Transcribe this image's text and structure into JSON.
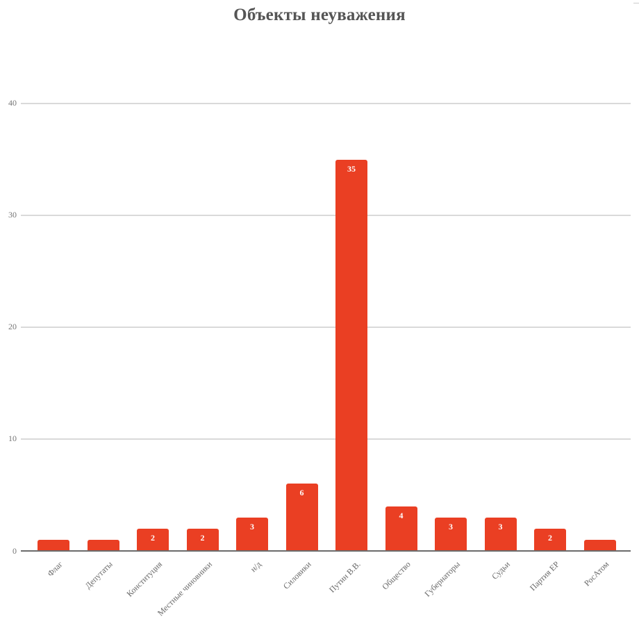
{
  "chart_data": {
    "type": "bar",
    "title": "Объекты неуважения",
    "xlabel": "",
    "ylabel": "",
    "ylim": [
      0,
      40
    ],
    "yticks": [
      0,
      10,
      20,
      30,
      40
    ],
    "grid": true,
    "legend": null,
    "bar_color": "#ea3f23",
    "categories": [
      "Флаг",
      "Депутаты",
      "Конституция",
      "Местные чиновники",
      "н/д",
      "Силовики",
      "Путин В.В.",
      "Общество",
      "Губернаторы",
      "Судьи",
      "Партия ЕР",
      "РосАтом"
    ],
    "values": [
      1,
      1,
      2,
      2,
      3,
      6,
      35,
      4,
      3,
      3,
      2,
      1
    ],
    "data_labels": [
      "",
      "",
      "2",
      "2",
      "3",
      "6",
      "35",
      "4",
      "3",
      "3",
      "2",
      ""
    ]
  },
  "yticks_text": [
    "40",
    "30",
    "20",
    "10",
    "0"
  ]
}
